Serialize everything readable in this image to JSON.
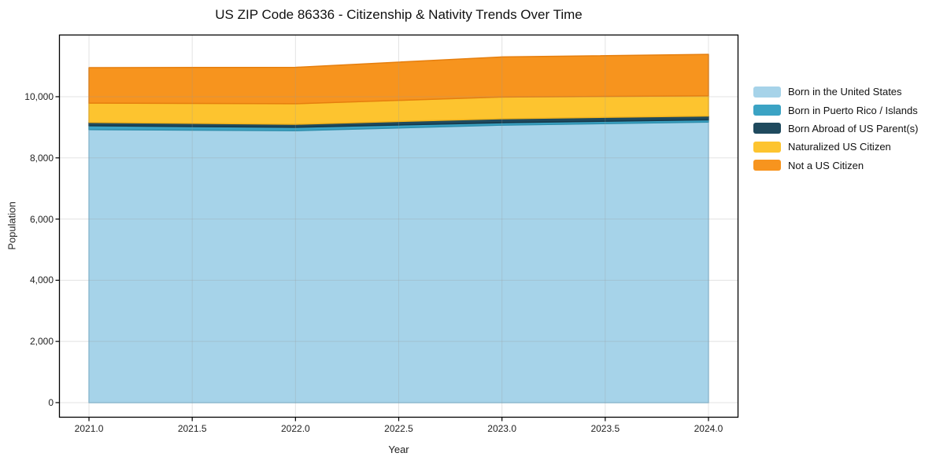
{
  "chart_data": {
    "type": "area",
    "stacked": true,
    "title": "US ZIP Code 86336 - Citizenship & Nativity Trends Over Time",
    "xlabel": "Year",
    "ylabel": "Population",
    "x": [
      2021,
      2022,
      2023,
      2024
    ],
    "series": [
      {
        "name": "Born in the United States",
        "values": [
          8925,
          8890,
          9070,
          9170
        ],
        "color": "#A6D3E9",
        "edge_color": "#8CC1DC"
      },
      {
        "name": "Born in Puerto Rico / Islands",
        "values": [
          125,
          110,
          80,
          75
        ],
        "color": "#3BA3C4",
        "edge_color": "#2E8FAD"
      },
      {
        "name": "Born Abroad of US Parent(s)",
        "values": [
          110,
          100,
          130,
          125
        ],
        "color": "#1F4A5E",
        "edge_color": "#16394A"
      },
      {
        "name": "Naturalized US Citizen",
        "values": [
          630,
          670,
          710,
          660
        ],
        "color": "#FDC42F",
        "edge_color": "#F2B31C"
      },
      {
        "name": "Not a US Citizen",
        "values": [
          1160,
          1190,
          1310,
          1355
        ],
        "color": "#F7941E",
        "edge_color": "#E67F0E"
      }
    ],
    "stacked_totals": [
      10950,
      10960,
      11300,
      11385
    ],
    "x_ticks": [
      2021.0,
      2021.5,
      2022.0,
      2022.5,
      2023.0,
      2023.5,
      2024.0
    ],
    "x_tick_labels": [
      "2021.0",
      "2021.5",
      "2022.0",
      "2022.5",
      "2023.0",
      "2023.5",
      "2024.0"
    ],
    "y_ticks": [
      0,
      2000,
      4000,
      6000,
      8000,
      10000
    ],
    "y_tick_labels": [
      "0",
      "2,000",
      "4,000",
      "6,000",
      "8,000",
      "10,000"
    ],
    "xlim": [
      2020.855,
      2024.145
    ],
    "ylim": [
      -490,
      12030
    ],
    "grid": true,
    "legend_position": "right",
    "background_color": "#ffffff",
    "spine_color": "#000000",
    "grid_color": "#999999"
  }
}
